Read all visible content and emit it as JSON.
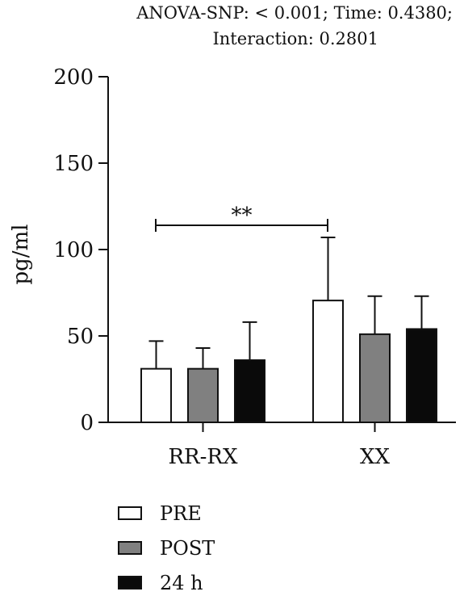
{
  "chart_data": {
    "type": "bar",
    "title_lines": [
      "ANOVA-SNP: < 0.001; Time: 0.4380;",
      "Interaction: 0.2801"
    ],
    "ylabel": "pg/ml",
    "ylim": [
      0,
      200
    ],
    "yticks": [
      "0",
      "50",
      "100",
      "150",
      "200"
    ],
    "categories": [
      "RR-RX",
      "XX"
    ],
    "series": [
      {
        "name": "PRE",
        "color": "#ffffff",
        "values": [
          31,
          70.5
        ],
        "errors": [
          16,
          36.5
        ]
      },
      {
        "name": "POST",
        "color": "#808080",
        "values": [
          31,
          51
        ],
        "errors": [
          12,
          22
        ]
      },
      {
        "name": "24 h",
        "color": "#0a0a0a",
        "values": [
          36,
          54
        ],
        "errors": [
          22,
          19
        ]
      }
    ],
    "annotations": [
      {
        "text": "**",
        "from": "RR-RX",
        "to": "XX",
        "y": 114
      }
    ],
    "legend_position": "bottom-left"
  }
}
